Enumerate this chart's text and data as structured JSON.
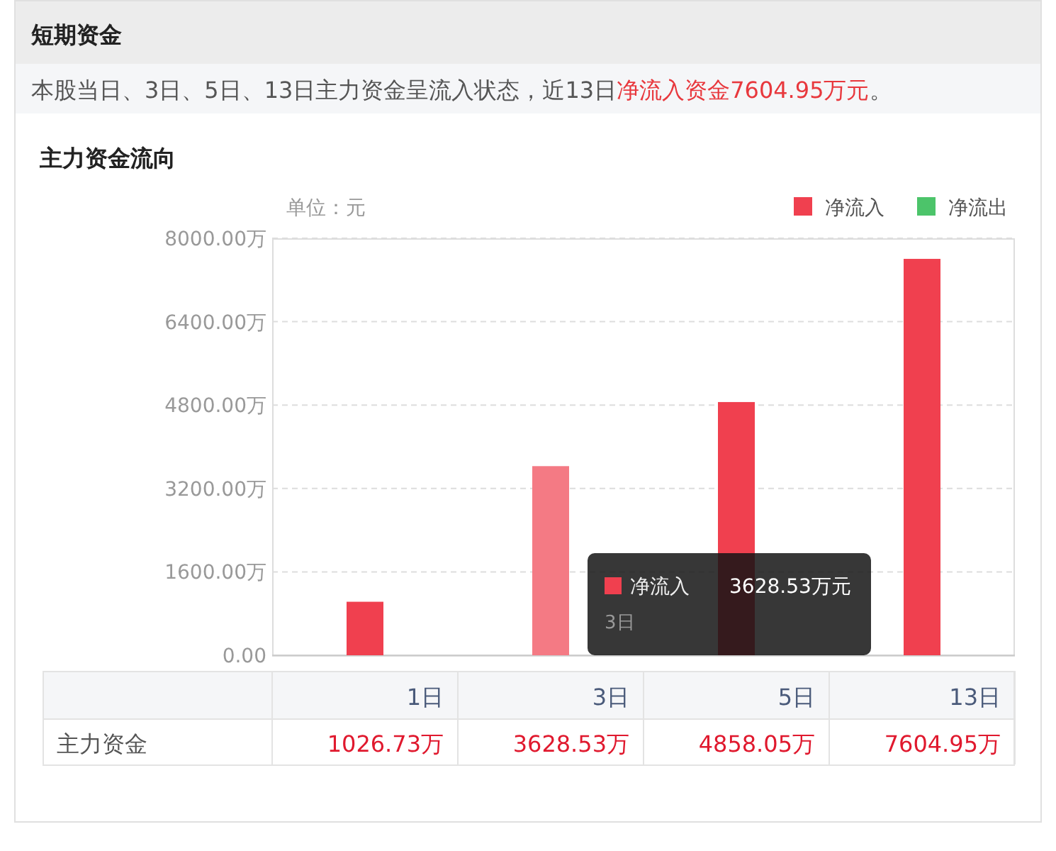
{
  "chart_data": {
    "type": "bar",
    "title": "主力资金流向",
    "subtitle": [
      "本股当日、3日、5日、13日主力资金呈流入状态，近13日",
      "净流入资金7604.95万元",
      "。"
    ],
    "ylabel": "单位：元",
    "categories": [
      "1日",
      "3日",
      "5日",
      "13日"
    ],
    "series": [
      {
        "name": "净流入",
        "color": "#f0404f",
        "colors": [
          "#f0404f",
          "#f47a84",
          "#f0404f",
          "#f0404f"
        ],
        "values": [
          1026.73,
          3628.53,
          4858.05,
          7604.95
        ],
        "value_labels": [
          "1026.73万",
          "3628.53万",
          "4858.05万",
          "7604.95万"
        ]
      },
      {
        "name": "净流出",
        "color": "#4cc46a",
        "values": [
          null,
          null,
          null,
          null
        ]
      }
    ],
    "ylim": [
      0,
      8000
    ],
    "yticks": [
      {
        "value": 0,
        "label": "0.00"
      },
      {
        "value": 1600,
        "label": "1600.00万"
      },
      {
        "value": 3200,
        "label": "3200.00万"
      },
      {
        "value": 4800,
        "label": "4800.00万"
      },
      {
        "value": 6400,
        "label": "6400.00万"
      },
      {
        "value": 8000,
        "label": "8000.00万"
      }
    ],
    "grid": "y",
    "legend": "top right",
    "annotations": [
      "短期资金",
      "主力资金",
      "净流入",
      "3628.53万元",
      "3日"
    ]
  }
}
